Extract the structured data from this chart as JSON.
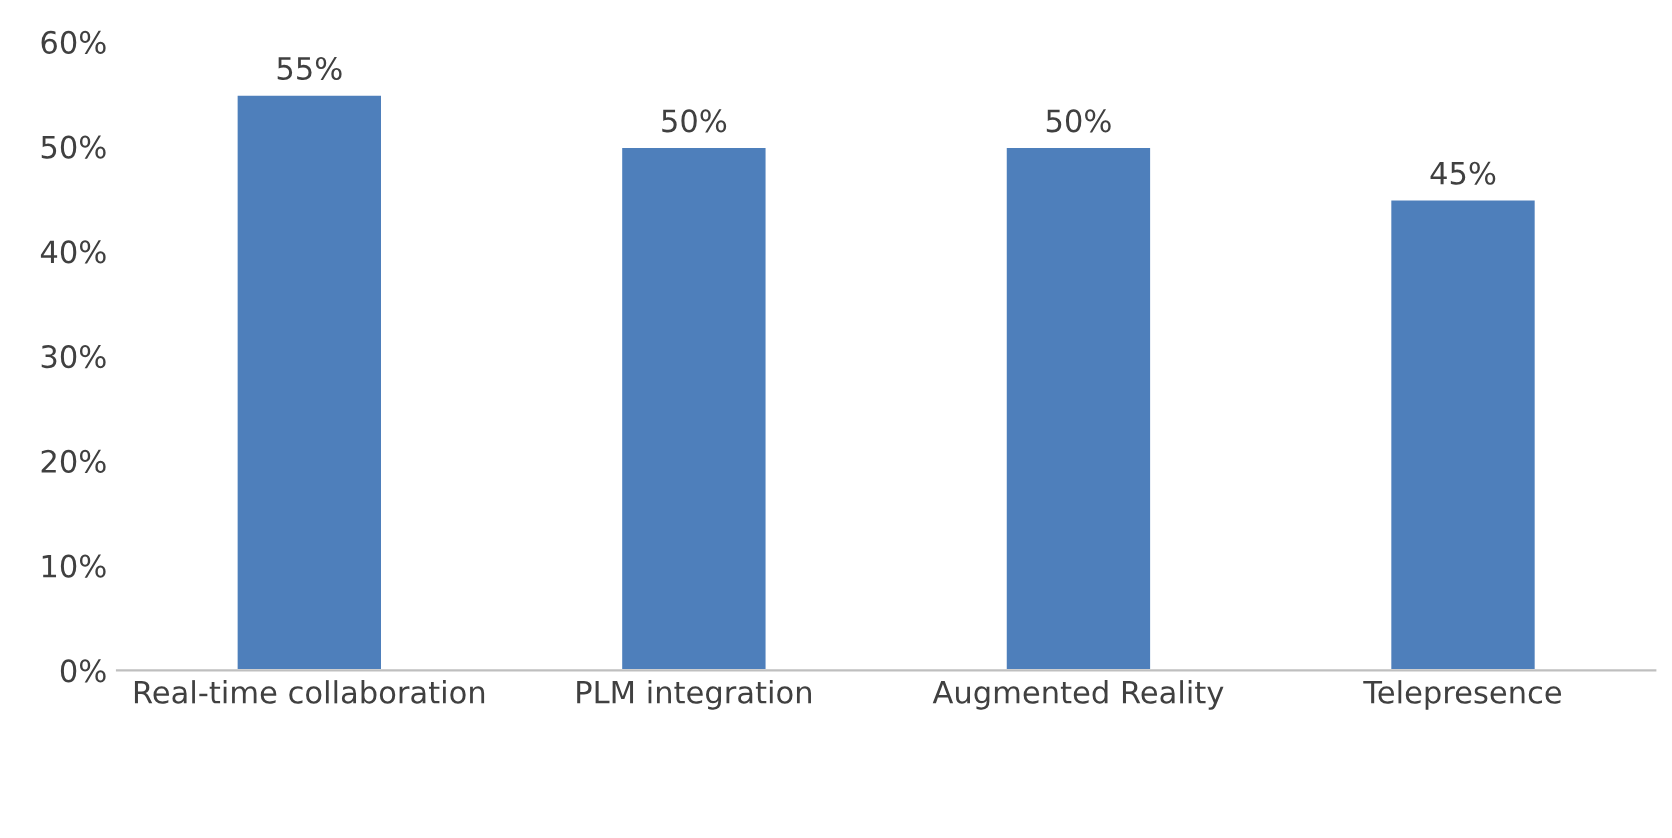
{
  "chart_data": {
    "type": "bar",
    "categories": [
      "Real-time collaboration",
      "PLM integration",
      "Augmented Reality",
      "Telepresence"
    ],
    "values": [
      55,
      50,
      50,
      45
    ],
    "value_labels": [
      "55%",
      "50%",
      "50%",
      "45%"
    ],
    "color": "#4e7fbb",
    "ylim": [
      0,
      60
    ],
    "yticks": [
      {
        "value": 0,
        "label": "0%"
      },
      {
        "value": 10,
        "label": "10%"
      },
      {
        "value": 20,
        "label": "20%"
      },
      {
        "value": 30,
        "label": "30%"
      },
      {
        "value": 40,
        "label": "40%"
      },
      {
        "value": 50,
        "label": "50%"
      },
      {
        "value": 60,
        "label": "60%"
      }
    ],
    "grid": false
  }
}
